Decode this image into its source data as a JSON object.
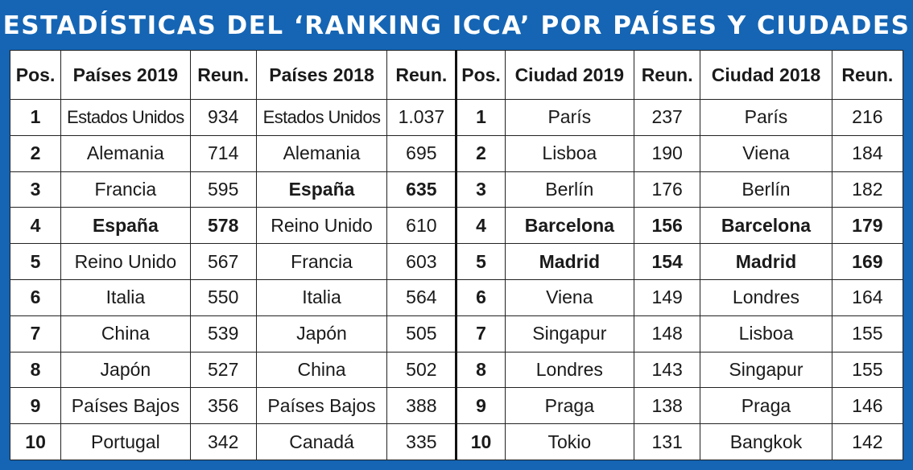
{
  "title": "ESTADÍSTICAS DEL ‘RANKING ICCA’ POR PAÍSES Y CIUDADES",
  "headers": [
    "Pos.",
    "Países 2019",
    "Reun.",
    "Países 2018",
    "Reun.",
    "Pos.",
    "Ciudad 2019",
    "Reun.",
    "Ciudad 2018",
    "Reun."
  ],
  "rows": [
    {
      "pos": "1",
      "country2019": "Estados Unidos",
      "reun2019": "934",
      "country2018": "Estados Unidos",
      "reun2018": "1.037",
      "pos2": "1",
      "city2019": "París",
      "creun2019": "237",
      "city2018": "París",
      "creun2018": "216",
      "bold_c19": false,
      "bold_c18": false,
      "bold_city19": false,
      "bold_city18": false
    },
    {
      "pos": "2",
      "country2019": "Alemania",
      "reun2019": "714",
      "country2018": "Alemania",
      "reun2018": "695",
      "pos2": "2",
      "city2019": "Lisboa",
      "creun2019": "190",
      "city2018": "Viena",
      "creun2018": "184",
      "bold_c19": false,
      "bold_c18": false,
      "bold_city19": false,
      "bold_city18": false
    },
    {
      "pos": "3",
      "country2019": "Francia",
      "reun2019": "595",
      "country2018": "España",
      "reun2018": "635",
      "pos2": "3",
      "city2019": "Berlín",
      "creun2019": "176",
      "city2018": "Berlín",
      "creun2018": "182",
      "bold_c19": false,
      "bold_c18": true,
      "bold_city19": false,
      "bold_city18": false
    },
    {
      "pos": "4",
      "country2019": "España",
      "reun2019": "578",
      "country2018": "Reino Unido",
      "reun2018": "610",
      "pos2": "4",
      "city2019": "Barcelona",
      "creun2019": "156",
      "city2018": "Barcelona",
      "creun2018": "179",
      "bold_c19": true,
      "bold_c18": false,
      "bold_city19": true,
      "bold_city18": true
    },
    {
      "pos": "5",
      "country2019": "Reino Unido",
      "reun2019": "567",
      "country2018": "Francia",
      "reun2018": "603",
      "pos2": "5",
      "city2019": "Madrid",
      "creun2019": "154",
      "city2018": "Madrid",
      "creun2018": "169",
      "bold_c19": false,
      "bold_c18": false,
      "bold_city19": true,
      "bold_city18": true
    },
    {
      "pos": "6",
      "country2019": "Italia",
      "reun2019": "550",
      "country2018": "Italia",
      "reun2018": "564",
      "pos2": "6",
      "city2019": "Viena",
      "creun2019": "149",
      "city2018": "Londres",
      "creun2018": "164",
      "bold_c19": false,
      "bold_c18": false,
      "bold_city19": false,
      "bold_city18": false
    },
    {
      "pos": "7",
      "country2019": "China",
      "reun2019": "539",
      "country2018": "Japón",
      "reun2018": "505",
      "pos2": "7",
      "city2019": "Singapur",
      "creun2019": "148",
      "city2018": "Lisboa",
      "creun2018": "155",
      "bold_c19": false,
      "bold_c18": false,
      "bold_city19": false,
      "bold_city18": false
    },
    {
      "pos": "8",
      "country2019": "Japón",
      "reun2019": "527",
      "country2018": "China",
      "reun2018": "502",
      "pos2": "8",
      "city2019": "Londres",
      "creun2019": "143",
      "city2018": "Singapur",
      "creun2018": "155",
      "bold_c19": false,
      "bold_c18": false,
      "bold_city19": false,
      "bold_city18": false
    },
    {
      "pos": "9",
      "country2019": "Países Bajos",
      "reun2019": "356",
      "country2018": "Países Bajos",
      "reun2018": "388",
      "pos2": "9",
      "city2019": "Praga",
      "creun2019": "138",
      "city2018": "Praga",
      "creun2018": "146",
      "bold_c19": false,
      "bold_c18": false,
      "bold_city19": false,
      "bold_city18": false
    },
    {
      "pos": "10",
      "country2019": "Portugal",
      "reun2019": "342",
      "country2018": "Canadá",
      "reun2018": "335",
      "pos2": "10",
      "city2019": "Tokio",
      "creun2019": "131",
      "city2018": "Bangkok",
      "creun2018": "142",
      "bold_c19": false,
      "bold_c18": false,
      "bold_city19": false,
      "bold_city18": false
    }
  ],
  "colors": {
    "background": "#1565b4",
    "title_text": "#ffffff",
    "table_bg": "#ffffff",
    "grid": "#222222"
  }
}
